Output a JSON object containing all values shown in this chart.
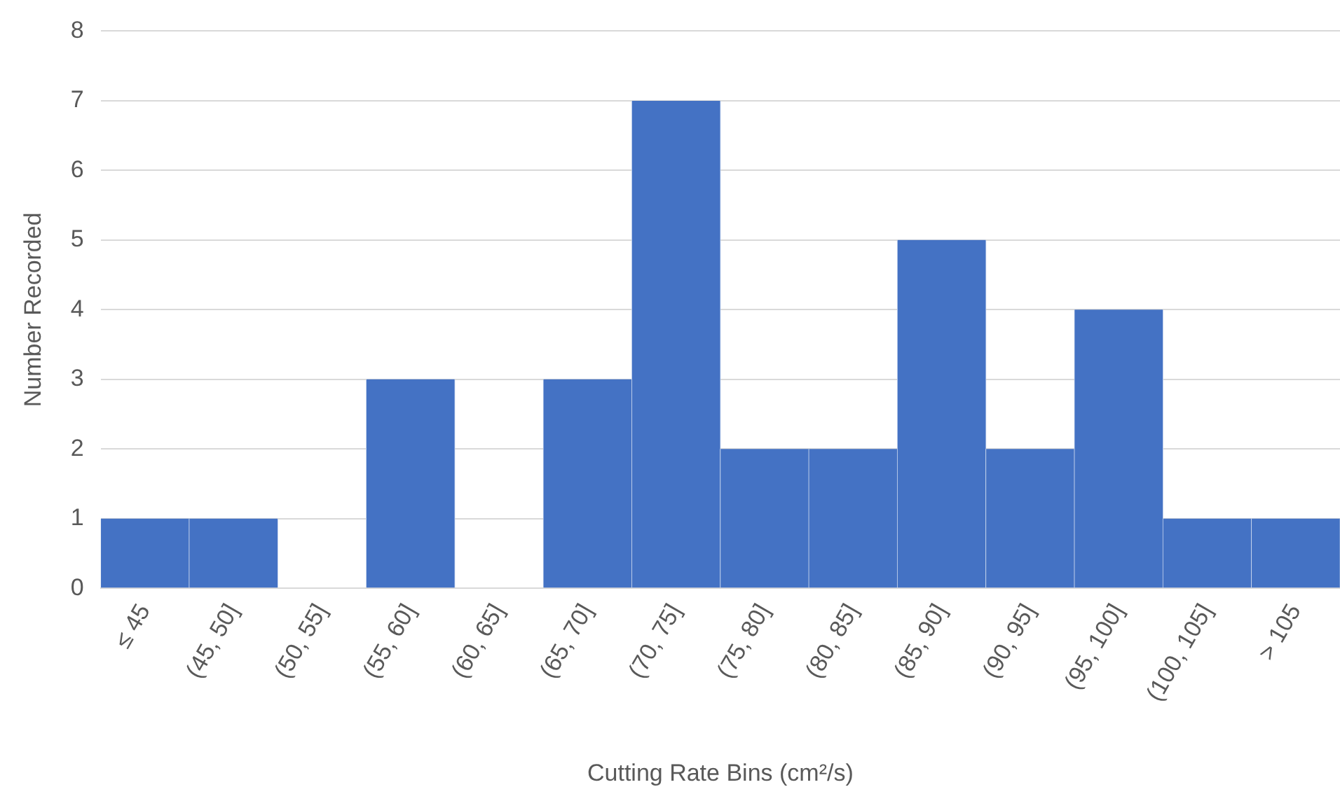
{
  "chart_data": {
    "type": "bar",
    "xlabel": "Cutting Rate Bins (cm²/s)",
    "ylabel": "Number Recorded",
    "categories": [
      "≤ 45",
      "(45, 50]",
      "(50, 55]",
      "(55, 60]",
      "(60, 65]",
      "(65, 70]",
      "(70, 75]",
      "(75, 80]",
      "(80, 85]",
      "(85, 90]",
      "(90, 95]",
      "(95, 100]",
      "(100, 105]",
      "> 105"
    ],
    "values": [
      1,
      1,
      0,
      3,
      0,
      3,
      7,
      2,
      2,
      5,
      2,
      4,
      1,
      1
    ],
    "color": "#4472c4",
    "ylim": [
      0,
      8
    ],
    "yticks": [
      0,
      1,
      2,
      3,
      4,
      5,
      6,
      7,
      8
    ],
    "grid": "y",
    "legend": false
  }
}
